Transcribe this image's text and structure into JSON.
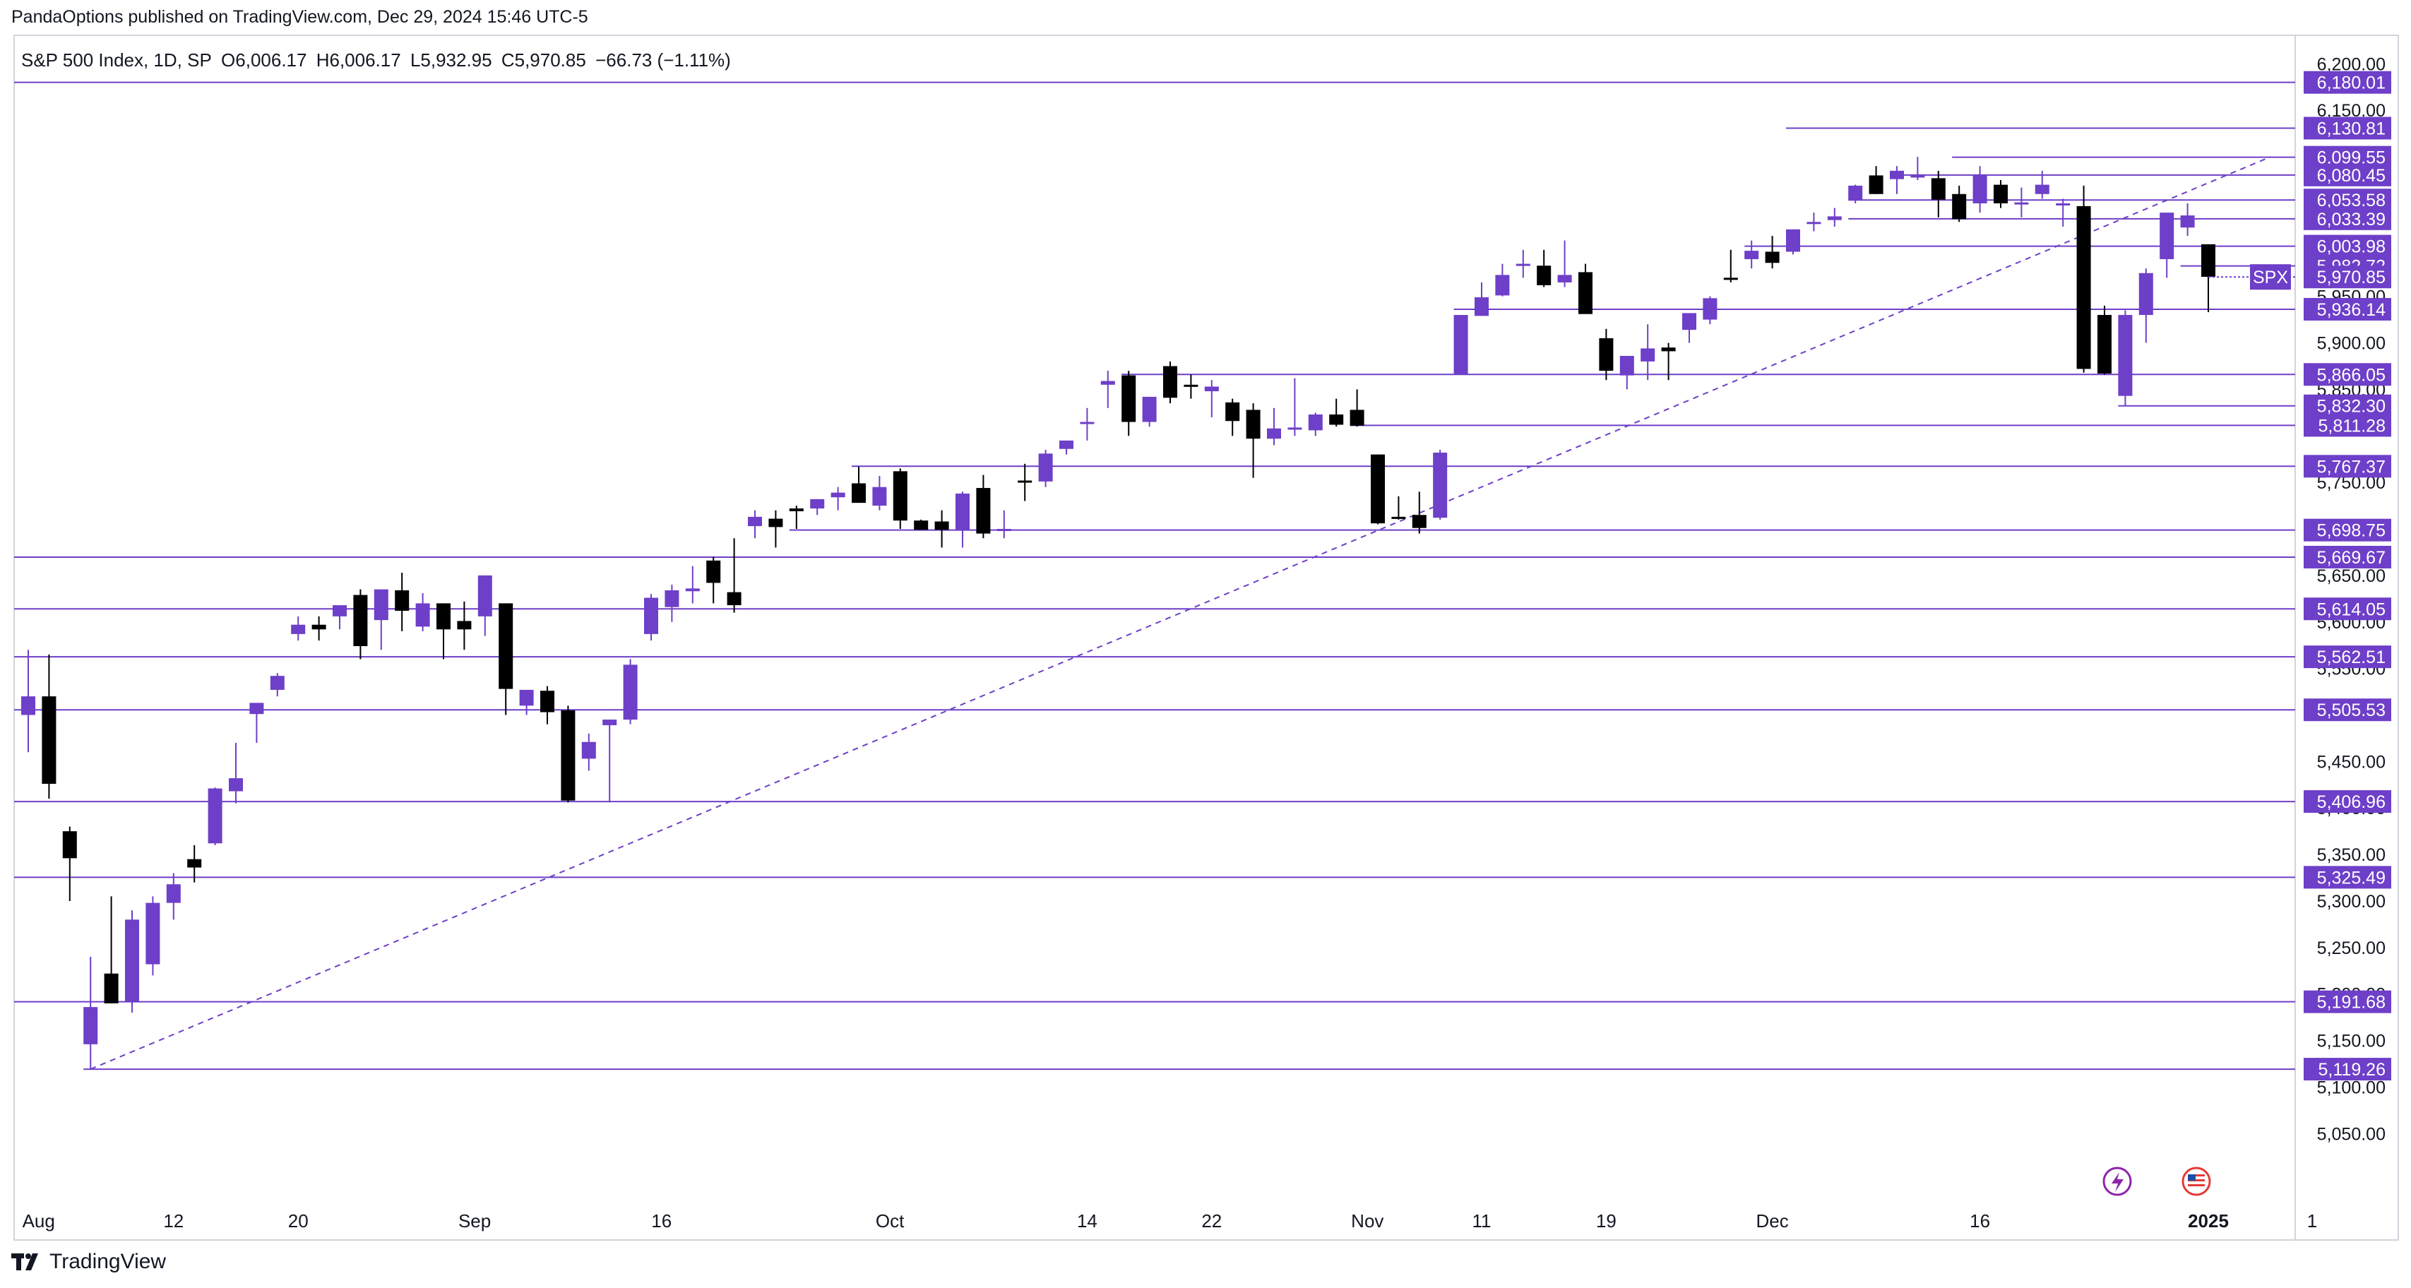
{
  "header": {
    "published": "PandaOptions published on TradingView.com, Dec 29, 2024 15:46 UTC-5"
  },
  "legend": {
    "symbol": "S&P 500 Index, 1D, SP",
    "open": "O6,006.17",
    "high": "H6,006.17",
    "low": "L5,932.95",
    "close": "C5,970.85",
    "change": "−66.73 (−1.11%)"
  },
  "footer": {
    "brand": "TradingView"
  },
  "colors": {
    "up": "#6e3fc8",
    "down": "#000000",
    "level_line": "#6e3fc8",
    "label_bg": "#6e3fc8",
    "trendline": "#6e3fc8"
  },
  "chart_data": {
    "type": "candlestick",
    "symbol": "SPX",
    "ylim": [
      5010,
      6220
    ],
    "y_ticks": [
      "6,200.00",
      "6,150.00",
      "5,950.00",
      "5,900.00",
      "5,850.00",
      "5,750.00",
      "5,700.00",
      "5,650.00",
      "5,600.00",
      "5,550.00",
      "5,450.00",
      "5,400.00",
      "5,350.00",
      "5,300.00",
      "5,250.00",
      "5,200.00",
      "5,150.00",
      "5,100.00",
      "5,050.00"
    ],
    "x_labels": [
      {
        "label": "Aug",
        "i": 0.5
      },
      {
        "label": "12",
        "i": 7
      },
      {
        "label": "20",
        "i": 13
      },
      {
        "label": "Sep",
        "i": 21.5
      },
      {
        "label": "16",
        "i": 30.5
      },
      {
        "label": "Oct",
        "i": 41.5
      },
      {
        "label": "14",
        "i": 51
      },
      {
        "label": "22",
        "i": 57
      },
      {
        "label": "Nov",
        "i": 64.5
      },
      {
        "label": "11",
        "i": 70
      },
      {
        "label": "19",
        "i": 76
      },
      {
        "label": "Dec",
        "i": 84
      },
      {
        "label": "16",
        "i": 94
      },
      {
        "label": "2025",
        "i": 105
      },
      {
        "label": "1",
        "i": 110
      }
    ],
    "candles": [
      [
        5500,
        5570,
        5460,
        5520
      ],
      [
        5520,
        5565,
        5410,
        5426
      ],
      [
        5375,
        5380,
        5300,
        5346
      ],
      [
        5146,
        5240,
        5120,
        5186
      ],
      [
        5222,
        5305,
        5190,
        5190
      ],
      [
        5192,
        5290,
        5180,
        5280
      ],
      [
        5232,
        5305,
        5220,
        5298
      ],
      [
        5298,
        5330,
        5280,
        5318
      ],
      [
        5345,
        5360,
        5320,
        5336
      ],
      [
        5362,
        5422,
        5360,
        5421
      ],
      [
        5418,
        5470,
        5405,
        5432
      ],
      [
        5501,
        5504,
        5470,
        5513
      ],
      [
        5527,
        5545,
        5520,
        5542
      ],
      [
        5587,
        5606,
        5580,
        5597
      ],
      [
        5597,
        5606,
        5580,
        5592
      ],
      [
        5606,
        5617,
        5592,
        5618
      ],
      [
        5629,
        5635,
        5560,
        5574
      ],
      [
        5602,
        5634,
        5570,
        5635
      ],
      [
        5634,
        5653,
        5590,
        5612
      ],
      [
        5595,
        5631,
        5590,
        5620
      ],
      [
        5620,
        5620,
        5560,
        5592
      ],
      [
        5601,
        5622,
        5570,
        5592
      ],
      [
        5606,
        5650,
        5585,
        5650
      ],
      [
        5620,
        5620,
        5500,
        5528
      ],
      [
        5510,
        5525,
        5500,
        5527
      ],
      [
        5526,
        5531,
        5490,
        5503
      ],
      [
        5505,
        5510,
        5406,
        5408
      ],
      [
        5453,
        5480,
        5440,
        5471
      ],
      [
        5489,
        5495,
        5406,
        5495
      ],
      [
        5495,
        5560,
        5490,
        5554
      ],
      [
        5587,
        5630,
        5580,
        5626
      ],
      [
        5616,
        5640,
        5600,
        5634
      ],
      [
        5633,
        5660,
        5620,
        5636
      ],
      [
        5666,
        5670,
        5620,
        5642
      ],
      [
        5632,
        5690,
        5610,
        5618
      ],
      [
        5703,
        5720,
        5690,
        5713
      ],
      [
        5711,
        5720,
        5680,
        5702
      ],
      [
        5722,
        5725,
        5700,
        5719
      ],
      [
        5722,
        5732,
        5715,
        5732
      ],
      [
        5734,
        5745,
        5720,
        5739
      ],
      [
        5749,
        5767,
        5730,
        5728
      ],
      [
        5725,
        5757,
        5720,
        5745
      ],
      [
        5762,
        5765,
        5700,
        5709
      ],
      [
        5709,
        5710,
        5700,
        5699
      ],
      [
        5708,
        5720,
        5680,
        5699
      ],
      [
        5699,
        5740,
        5680,
        5738
      ],
      [
        5744,
        5758,
        5690,
        5695
      ],
      [
        5700,
        5720,
        5690,
        5700
      ],
      [
        5752,
        5770,
        5730,
        5751
      ],
      [
        5751,
        5785,
        5745,
        5781
      ],
      [
        5786,
        5790,
        5780,
        5795
      ],
      [
        5815,
        5830,
        5795,
        5815
      ],
      [
        5855,
        5870,
        5830,
        5859
      ],
      [
        5865,
        5870,
        5800,
        5815
      ],
      [
        5815,
        5840,
        5810,
        5842
      ],
      [
        5875,
        5880,
        5835,
        5841
      ],
      [
        5855,
        5866,
        5840,
        5854
      ],
      [
        5848,
        5860,
        5820,
        5853
      ],
      [
        5836,
        5840,
        5800,
        5816
      ],
      [
        5828,
        5835,
        5755,
        5797
      ],
      [
        5797,
        5830,
        5790,
        5808
      ],
      [
        5807,
        5862,
        5800,
        5809
      ],
      [
        5806,
        5825,
        5800,
        5823
      ],
      [
        5823,
        5840,
        5810,
        5812
      ],
      [
        5828,
        5850,
        5810,
        5811
      ],
      [
        5780,
        5780,
        5705,
        5706
      ],
      [
        5713,
        5735,
        5710,
        5712
      ],
      [
        5715,
        5740,
        5695,
        5701
      ],
      [
        5712,
        5785,
        5710,
        5782
      ],
      [
        5866,
        5930,
        5866,
        5930
      ],
      [
        5929,
        5965,
        5929,
        5949
      ],
      [
        5951,
        5985,
        5950,
        5973
      ],
      [
        5985,
        6000,
        5970,
        5985
      ],
      [
        5983,
        6000,
        5960,
        5962
      ],
      [
        5965,
        6010,
        5960,
        5973
      ],
      [
        5976,
        5985,
        5940,
        5931
      ],
      [
        5905,
        5915,
        5860,
        5870
      ],
      [
        5865,
        5880,
        5850,
        5886
      ],
      [
        5880,
        5920,
        5860,
        5894
      ],
      [
        5895,
        5900,
        5860,
        5891
      ],
      [
        5914,
        5930,
        5900,
        5932
      ],
      [
        5925,
        5950,
        5920,
        5948
      ],
      [
        5970,
        6000,
        5965,
        5969
      ],
      [
        5990,
        6010,
        5980,
        5999
      ],
      [
        5998,
        6015,
        5980,
        5986
      ],
      [
        5998,
        6020,
        5995,
        6022
      ],
      [
        6030,
        6040,
        6020,
        6030
      ],
      [
        6032,
        6045,
        6025,
        6036
      ],
      [
        6054,
        6070,
        6050,
        6069
      ],
      [
        6080,
        6090,
        6060,
        6060
      ],
      [
        6076,
        6090,
        6060,
        6085
      ],
      [
        6080,
        6100,
        6075,
        6080
      ],
      [
        6077,
        6085,
        6035,
        6054
      ],
      [
        6060,
        6069,
        6030,
        6033
      ],
      [
        6050,
        6090,
        6040,
        6080
      ],
      [
        6070,
        6075,
        6045,
        6050
      ],
      [
        6051,
        6067,
        6035,
        6051
      ],
      [
        6060,
        6085,
        6055,
        6070
      ],
      [
        6050,
        6055,
        6025,
        6050
      ],
      [
        6047,
        6069,
        5868,
        5872
      ],
      [
        5930,
        5940,
        5866,
        5867
      ],
      [
        5843,
        5935,
        5832,
        5930
      ],
      [
        5930,
        5980,
        5900,
        5975
      ],
      [
        5990,
        6040,
        5970,
        6040
      ],
      [
        6024,
        6050,
        6015,
        6037
      ],
      [
        6006,
        6006,
        5933,
        5971
      ]
    ],
    "levels": [
      {
        "label": "6,180.01",
        "value": 6180.01,
        "from": 0
      },
      {
        "label": "6,130.81",
        "value": 6130.81,
        "from": 85
      },
      {
        "label": "6,099.55",
        "value": 6099.55,
        "from": 93
      },
      {
        "label": "6,080.45",
        "value": 6080.45,
        "from": 90
      },
      {
        "label": "6,053.58",
        "value": 6053.58,
        "from": 88
      },
      {
        "label": "6,033.39",
        "value": 6033.39,
        "from": 88
      },
      {
        "label": "6,003.98",
        "value": 6003.98,
        "from": 83
      },
      {
        "label": "5,982.72",
        "value": 5982.72,
        "from": 104
      },
      {
        "label": "5,936.14",
        "value": 5936.14,
        "from": 69
      },
      {
        "label": "5,866.05",
        "value": 5866.05,
        "from": 53
      },
      {
        "label": "5,832.30",
        "value": 5832.3,
        "from": 101
      },
      {
        "label": "5,811.28",
        "value": 5811.28,
        "from": 64
      },
      {
        "label": "5,767.37",
        "value": 5767.37,
        "from": 40
      },
      {
        "label": "5,698.75",
        "value": 5698.75,
        "from": 37
      },
      {
        "label": "5,669.67",
        "value": 5669.67,
        "from": 0
      },
      {
        "label": "5,614.05",
        "value": 5614.05,
        "from": 0
      },
      {
        "label": "5,562.51",
        "value": 5562.51,
        "from": 0
      },
      {
        "label": "5,505.53",
        "value": 5505.53,
        "from": 0
      },
      {
        "label": "5,406.96",
        "value": 5406.96,
        "from": 0
      },
      {
        "label": "5,325.49",
        "value": 5325.49,
        "from": 0
      },
      {
        "label": "5,191.68",
        "value": 5191.68,
        "from": 0
      },
      {
        "label": "5,119.26",
        "value": 5119.26,
        "from": 3
      }
    ],
    "last_price": {
      "label": "5,970.85",
      "value": 5970.85,
      "symbol_tag": "SPX"
    },
    "trendline": {
      "from": [
        3,
        5119.26
      ],
      "to": [
        108,
        6100
      ]
    }
  }
}
